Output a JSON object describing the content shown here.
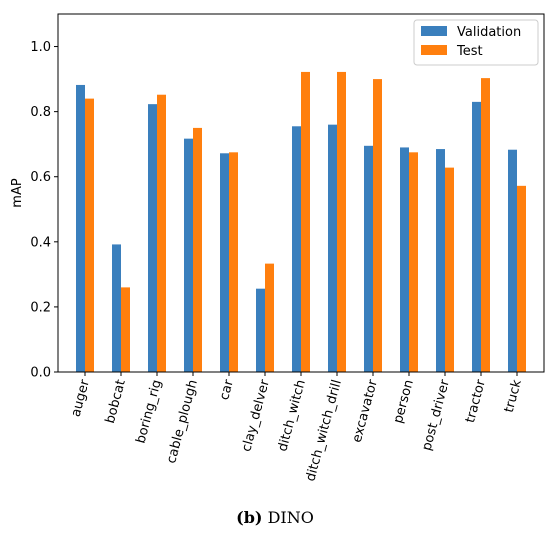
{
  "caption": {
    "label": "(b)",
    "text": "DINO"
  },
  "chart_data": {
    "type": "bar",
    "categories": [
      "auger",
      "bobcat",
      "boring_rig",
      "cable_plough",
      "car",
      "clay_delver",
      "ditch_witch",
      "ditch_witch_drill",
      "excavator",
      "person",
      "post_driver",
      "tractor",
      "truck"
    ],
    "series": [
      {
        "name": "Validation",
        "color": "#3a7fbd",
        "values": [
          0.882,
          0.392,
          0.823,
          0.717,
          0.672,
          0.256,
          0.755,
          0.76,
          0.695,
          0.69,
          0.685,
          0.83,
          0.683
        ]
      },
      {
        "name": "Test",
        "color": "#ff7f0e",
        "values": [
          0.84,
          0.26,
          0.852,
          0.75,
          0.675,
          0.333,
          0.922,
          0.922,
          0.9,
          0.675,
          0.628,
          0.903,
          0.572
        ]
      }
    ],
    "xlabel": "",
    "ylabel": "mAP",
    "ylim": [
      0,
      1.1
    ],
    "yticks": [
      0.0,
      0.2,
      0.4,
      0.6,
      0.8,
      1.0
    ],
    "legend": "top-right",
    "grid": false
  }
}
